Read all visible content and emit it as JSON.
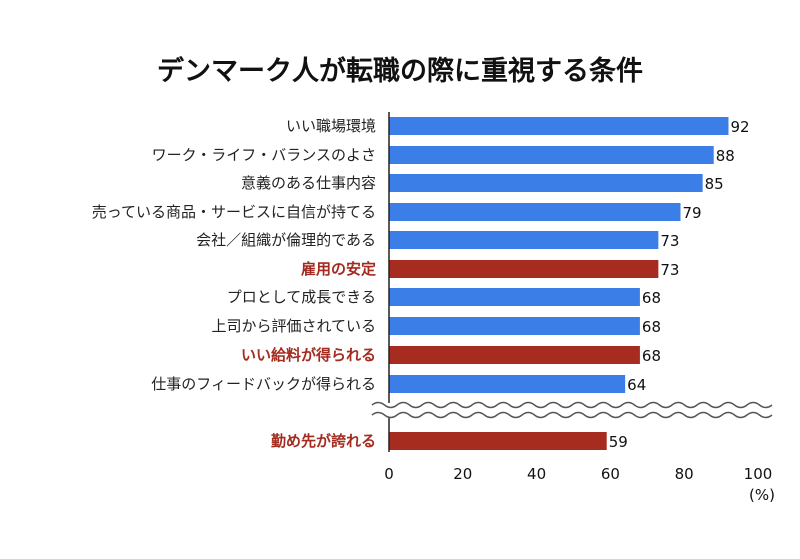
{
  "chart_data": {
    "type": "bar",
    "orientation": "horizontal",
    "title": "デンマーク人が転職の際に重視する条件",
    "unit_label": "(%)",
    "xlim": [
      0,
      100
    ],
    "xticks": [
      "0",
      "20",
      "40",
      "60",
      "80",
      "100"
    ],
    "grid": false,
    "axis_break": "before-last-category",
    "colors": {
      "default": "#3c7ee8",
      "highlight": "#a52c1e"
    },
    "categories": [
      "いい職場環境",
      "ワーク・ライフ・バランスのよさ",
      "意義のある仕事内容",
      "売っている商品・サービスに自信が持てる",
      "会社／組織が倫理的である",
      "雇用の安定",
      "プロとして成長できる",
      "上司から評価されている",
      "いい給料が得られる",
      "仕事のフィードバックが得られる",
      "勤め先が誇れる"
    ],
    "values": [
      92,
      88,
      85,
      79,
      73,
      73,
      68,
      68,
      68,
      64,
      59
    ],
    "highlighted": [
      false,
      false,
      false,
      false,
      false,
      true,
      false,
      false,
      true,
      false,
      true
    ]
  }
}
